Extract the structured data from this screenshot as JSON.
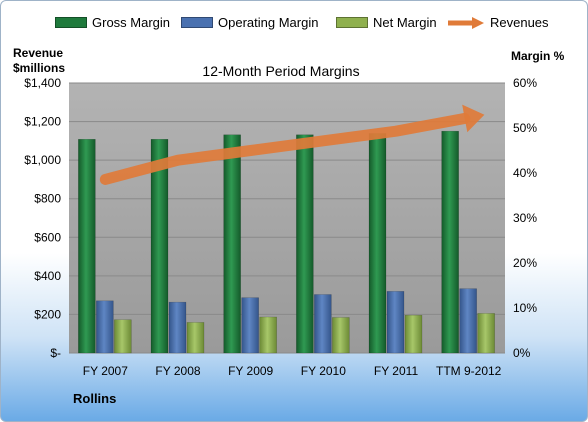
{
  "colors": {
    "gross": "#1f7a3c",
    "operating": "#4a71b0",
    "net": "#8fb04e",
    "revenue": "#e07b39",
    "plot_bg": "#a6a6a6"
  },
  "legend": [
    {
      "key": "gross",
      "label": "Gross Margin"
    },
    {
      "key": "operating",
      "label": "Operating Margin"
    },
    {
      "key": "net",
      "label": "Net Margin"
    },
    {
      "key": "revenue",
      "label": "Revenues"
    }
  ],
  "footer": "Rollins",
  "chart_data": {
    "type": "bar",
    "title": "12-Month Period Margins",
    "ylabel_left": "Revenue\n$millions",
    "ylabel_right": "Margin %",
    "categories": [
      "FY 2007",
      "FY 2008",
      "FY 2009",
      "FY 2010",
      "FY 2011",
      "TTM 9-2012"
    ],
    "y_left": {
      "min": 0,
      "max": 1400,
      "ticks": [
        "$-",
        "$200",
        "$400",
        "$600",
        "$800",
        "$1,000",
        "$1,200",
        "$1,400"
      ]
    },
    "y_right": {
      "min": 0,
      "max": 60,
      "ticks": [
        "0%",
        "10%",
        "20%",
        "30%",
        "40%",
        "50%",
        "60%"
      ]
    },
    "series": [
      {
        "name": "Gross Margin",
        "axis": "right",
        "values": [
          47.5,
          47.5,
          48.5,
          48.5,
          48.8,
          49.3
        ]
      },
      {
        "name": "Operating Margin",
        "axis": "right",
        "values": [
          11.6,
          11.3,
          12.3,
          13.0,
          13.7,
          14.3
        ]
      },
      {
        "name": "Net Margin",
        "axis": "right",
        "values": [
          7.4,
          6.8,
          8.0,
          7.9,
          8.4,
          8.8
        ]
      },
      {
        "name": "Revenues",
        "axis": "left",
        "type": "line",
        "values": [
          900,
          1000,
          1050,
          1100,
          1150,
          1220
        ]
      }
    ],
    "grid": true,
    "legend_position": "top"
  }
}
